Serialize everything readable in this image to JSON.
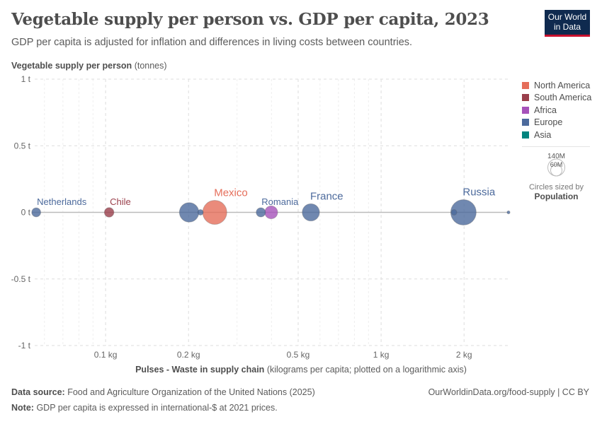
{
  "header": {
    "title": "Vegetable supply per person vs. GDP per capita, 2023",
    "subtitle": "GDP per capita is adjusted for inflation and differences in living costs between countries.",
    "logo": "Our World in Data"
  },
  "chart_data": {
    "type": "scatter",
    "title": "Vegetable supply per person vs. GDP per capita, 2023",
    "ylabel": {
      "bold": "Vegetable supply per person",
      "unit": "(tonnes)"
    },
    "xlabel": {
      "bold": "Pulses - Waste in supply chain",
      "unit": "(kilograms per capita; plotted on a logarithmic axis)"
    },
    "x_scale": "log",
    "xlim": [
      0.054,
      2.9
    ],
    "ylim": [
      -1,
      1
    ],
    "grid": true,
    "x_ticks": [
      {
        "v": 0.1,
        "label": "0.1 kg"
      },
      {
        "v": 0.2,
        "label": "0.2 kg"
      },
      {
        "v": 0.5,
        "label": "0.5 kg"
      },
      {
        "v": 1,
        "label": "1 kg"
      },
      {
        "v": 2,
        "label": "2 kg"
      }
    ],
    "y_ticks": [
      {
        "v": 1,
        "label": "1 t"
      },
      {
        "v": 0.5,
        "label": "0.5 t"
      },
      {
        "v": 0,
        "label": "0 t"
      },
      {
        "v": -0.5,
        "label": "-0.5 t"
      },
      {
        "v": -1,
        "label": "-1 t"
      }
    ],
    "regions": [
      {
        "name": "North America",
        "color": "#e56e5a"
      },
      {
        "name": "South America",
        "color": "#9a3f4b"
      },
      {
        "name": "Africa",
        "color": "#a652ba"
      },
      {
        "name": "Europe",
        "color": "#4c6a9c"
      },
      {
        "name": "Asia",
        "color": "#00847e"
      }
    ],
    "points": [
      {
        "label": "Netherlands",
        "x": 0.056,
        "y": 0,
        "region": "Europe",
        "pop_m": 18
      },
      {
        "label": "Chile",
        "x": 0.103,
        "y": 0,
        "region": "South America",
        "pop_m": 20
      },
      {
        "label": "",
        "x": 0.201,
        "y": 0,
        "region": "Europe",
        "pop_m": 84
      },
      {
        "label": "",
        "x": 0.221,
        "y": 0,
        "region": "Europe",
        "pop_m": 7
      },
      {
        "label": "Mexico",
        "x": 0.249,
        "y": 0,
        "region": "North America",
        "pop_m": 129
      },
      {
        "label": "Romania",
        "x": 0.366,
        "y": 0,
        "region": "Europe",
        "pop_m": 19
      },
      {
        "label": "",
        "x": 0.399,
        "y": 0,
        "region": "Africa",
        "pop_m": 37
      },
      {
        "label": "France",
        "x": 0.556,
        "y": 0,
        "region": "Europe",
        "pop_m": 66
      },
      {
        "label": "",
        "x": 1.84,
        "y": 0,
        "region": "Europe",
        "pop_m": 7
      },
      {
        "label": "Russia",
        "x": 1.99,
        "y": 0,
        "region": "Europe",
        "pop_m": 144
      },
      {
        "label": "",
        "x": 2.9,
        "y": 0,
        "region": "Europe",
        "pop_m": 2
      }
    ],
    "size_legend": {
      "values": [
        "140M",
        "60M"
      ],
      "caption": "Circles sized by",
      "variable": "Population"
    }
  },
  "footer": {
    "source_label": "Data source:",
    "source": "Food and Agriculture Organization of the United Nations (2025)",
    "note_label": "Note:",
    "note": "GDP per capita is expressed in international-$ at 2021 prices.",
    "url": "OurWorldinData.org/food-supply | CC BY"
  }
}
